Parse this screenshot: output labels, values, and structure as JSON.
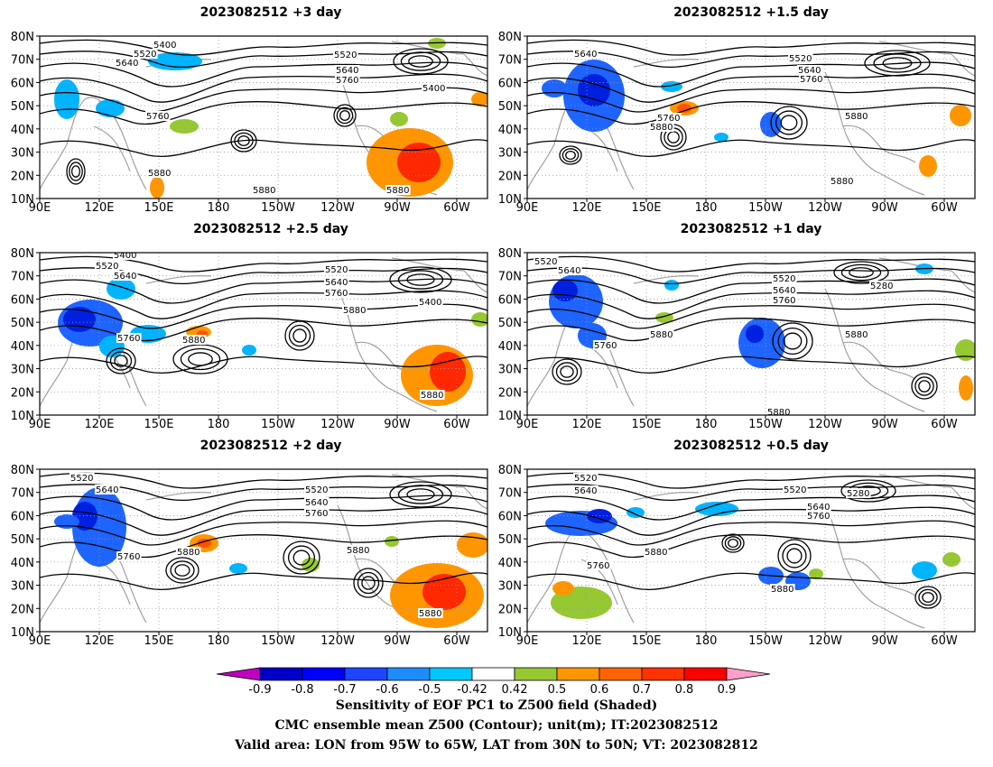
{
  "panels": [
    {
      "title": "2023082512 +3 day",
      "labels": [
        "5400",
        "5520",
        "5640",
        "5520",
        "5640",
        "5760",
        "5400",
        "5760",
        "5880",
        "5880",
        "5880"
      ]
    },
    {
      "title": "2023082512 +1.5 day",
      "labels": [
        "5640",
        "5520",
        "5640",
        "5760",
        "5760",
        "5880",
        "5880",
        "5880"
      ]
    },
    {
      "title": "2023082512 +2.5 day",
      "labels": [
        "5400",
        "5520",
        "5640",
        "5520",
        "5640",
        "5760",
        "5400",
        "5880",
        "5760",
        "5880",
        "5880"
      ]
    },
    {
      "title": "2023082512 +1 day",
      "labels": [
        "5520",
        "5640",
        "5520",
        "5640",
        "5760",
        "5280",
        "5760",
        "5880",
        "5880",
        "5880"
      ]
    },
    {
      "title": "2023082512 +2 day",
      "labels": [
        "5520",
        "5640",
        "5520",
        "5640",
        "5760",
        "5760",
        "5880",
        "5880",
        "5880"
      ]
    },
    {
      "title": "2023082512 +0.5 day",
      "labels": [
        "5520",
        "5640",
        "5520",
        "5280",
        "5640",
        "5760",
        "5880",
        "5760",
        "5880"
      ]
    }
  ],
  "axes": {
    "lat_ticks": [
      "80N",
      "70N",
      "60N",
      "50N",
      "40N",
      "30N",
      "20N",
      "10N"
    ],
    "lon_ticks": [
      "90E",
      "120E",
      "150E",
      "180",
      "150W",
      "120W",
      "90W",
      "60W"
    ]
  },
  "colorbar": {
    "tick_labels": [
      "-0.9",
      "-0.8",
      "-0.7",
      "-0.6",
      "-0.5",
      "-0.42",
      "0.42",
      "0.5",
      "0.6",
      "0.7",
      "0.8",
      "0.9"
    ],
    "colors": [
      "#c000c0",
      "#0000c8",
      "#0000ff",
      "#1e46ff",
      "#1e8cff",
      "#00c8ff",
      "#ffffff",
      "#96c832",
      "#ff9600",
      "#ff6400",
      "#ff3200",
      "#ff0000",
      "#ffa0c8"
    ]
  },
  "shading": {
    "blue_deep": "#0020e0",
    "blue": "#1e64ff",
    "cyan": "#00b4ff",
    "green": "#96c832",
    "orange": "#ff9600",
    "red_orange": "#ff5000",
    "red": "#ff2800"
  },
  "caption": {
    "line1": "Sensitivity of EOF PC1 to Z500 field (Shaded)",
    "line2": "CMC ensemble mean Z500 (Contour); unit(m); IT:2023082512",
    "line3": "Valid area: LON from 95W to 65W, LAT from 30N to 50N; VT: 2023082812"
  }
}
